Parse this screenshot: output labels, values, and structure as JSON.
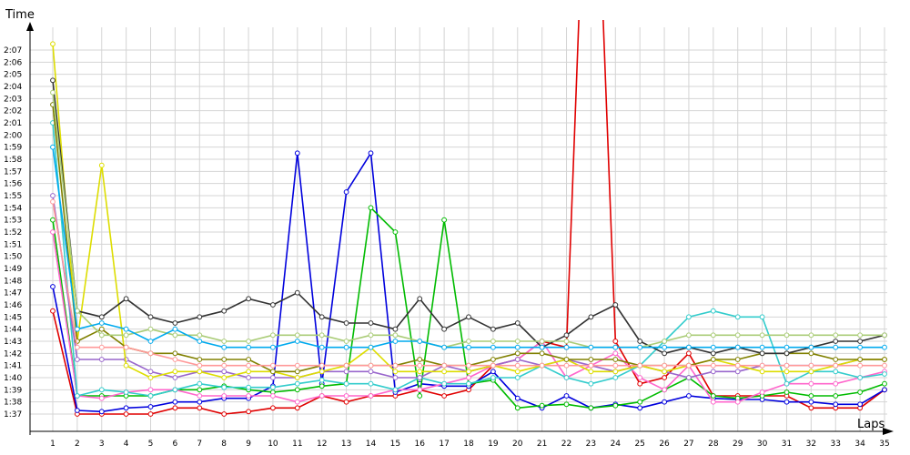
{
  "chart_data": {
    "type": "line",
    "title": "",
    "xlabel": "Laps",
    "ylabel": "Time",
    "x": [
      1,
      2,
      3,
      4,
      5,
      6,
      7,
      8,
      9,
      10,
      11,
      12,
      13,
      14,
      15,
      16,
      17,
      18,
      19,
      20,
      21,
      22,
      23,
      24,
      25,
      26,
      27,
      28,
      29,
      30,
      31,
      32,
      33,
      34,
      35
    ],
    "xlim": [
      1,
      35
    ],
    "y_ticks": [
      "1:37",
      "1:38",
      "1:39",
      "1:40",
      "1:41",
      "1:42",
      "1:43",
      "1:44",
      "1:45",
      "1:46",
      "1:47",
      "1:48",
      "1:49",
      "1:50",
      "1:51",
      "1:52",
      "1:53",
      "1:54",
      "1:55",
      "1:56",
      "1:57",
      "1:58",
      "1:59",
      "2:00",
      "2:01",
      "2:02",
      "2:03",
      "2:04",
      "2:05",
      "2:06",
      "2:07"
    ],
    "ylim_seconds": [
      96,
      128
    ],
    "y_unit": "seconds (lap time, labeled m:ss)",
    "grid": true,
    "legend": "none",
    "series": [
      {
        "color": "#e00000",
        "values": [
          105.5,
          97,
          97,
          97,
          97,
          97.5,
          97.5,
          97,
          97.2,
          97.5,
          97.5,
          98.5,
          98,
          98.5,
          98.5,
          99,
          98.5,
          99,
          101,
          101.5,
          103,
          102.5,
          156,
          103,
          99.5,
          100,
          102,
          98.5,
          98.5,
          98.5,
          98.5,
          97.5,
          97.5,
          97.5,
          99
        ]
      },
      {
        "color": "#0000dd",
        "values": [
          107.5,
          97.3,
          97.2,
          97.5,
          97.6,
          98,
          98,
          98.3,
          98.3,
          99.3,
          118.5,
          99.5,
          115.3,
          118.5,
          98.8,
          99.5,
          99.3,
          99.3,
          100.5,
          98.3,
          97.5,
          98.5,
          97.5,
          97.8,
          97.5,
          98,
          98.5,
          98.3,
          98.2,
          98.2,
          98,
          98,
          97.8,
          97.8,
          99
        ]
      },
      {
        "color": "#00bb00",
        "values": [
          113,
          98.5,
          98.5,
          98.5,
          98.5,
          99,
          99,
          99.3,
          99,
          98.8,
          99,
          99.3,
          99.5,
          114,
          112,
          98.5,
          113,
          99.5,
          99.8,
          97.5,
          97.7,
          97.8,
          97.5,
          97.7,
          98,
          99,
          100,
          98.5,
          98.3,
          98.5,
          98.8,
          98.5,
          98.5,
          98.8,
          99.5
        ]
      },
      {
        "color": "#ff66cc",
        "values": [
          112,
          98.5,
          98.3,
          98.8,
          99,
          99,
          98.5,
          98.5,
          98.5,
          98.5,
          98,
          98.5,
          98.5,
          98.5,
          99,
          99,
          99.5,
          100,
          101,
          101.5,
          103,
          100,
          101,
          102,
          100,
          99,
          101,
          98,
          98,
          98.8,
          99.5,
          99.5,
          99.5,
          100,
          100.5
        ]
      },
      {
        "color": "#33cccc",
        "values": [
          121,
          98.5,
          99,
          98.8,
          98.5,
          99,
          99.5,
          99.2,
          99.2,
          99.2,
          99.5,
          99.8,
          99.5,
          99.5,
          99,
          100,
          99.5,
          99.5,
          100,
          100,
          101,
          100,
          99.5,
          100,
          101,
          103,
          105,
          105.5,
          105,
          105,
          99.5,
          100.5,
          100.5,
          100,
          100.3
        ]
      },
      {
        "color": "#9966cc",
        "values": [
          115,
          101.5,
          101.5,
          101.5,
          100.5,
          100,
          100.5,
          100.5,
          100,
          100,
          100,
          100.5,
          100.5,
          100.5,
          100,
          100,
          101,
          100.5,
          101,
          101.5,
          101,
          101.5,
          101,
          100.5,
          101,
          100.5,
          100,
          100.5,
          100.5,
          101,
          101,
          101,
          101,
          101.5,
          101.5
        ]
      },
      {
        "color": "#dddd00",
        "values": [
          127.5,
          103,
          117.5,
          101,
          100,
          100.5,
          100.5,
          100,
          100.5,
          100.5,
          100,
          100.5,
          101,
          102.5,
          100.5,
          100.5,
          100.5,
          100.5,
          101,
          100.5,
          101,
          101.5,
          100.5,
          100.5,
          101,
          100.5,
          101,
          101.5,
          101,
          100.5,
          100.5,
          100.5,
          101,
          101.5,
          101.5
        ]
      },
      {
        "color": "#808000",
        "values": [
          122.5,
          103,
          104,
          102.5,
          102,
          102,
          101.5,
          101.5,
          101.5,
          100.5,
          100.5,
          101,
          101,
          101,
          101,
          101.5,
          101,
          101,
          101.5,
          102,
          102,
          101.5,
          101.5,
          101.5,
          101,
          101,
          101,
          101.5,
          101.5,
          102,
          102,
          102,
          101.5,
          101.5,
          101.5
        ]
      },
      {
        "color": "#333333",
        "values": [
          124.5,
          105.5,
          105,
          106.5,
          105,
          104.5,
          105,
          105.5,
          106.5,
          106,
          107,
          105,
          104.5,
          104.5,
          104,
          106.5,
          104,
          105,
          104,
          104.5,
          102.5,
          103.5,
          105,
          106,
          103,
          102,
          102.5,
          102,
          102.5,
          102,
          102,
          102.5,
          103,
          103,
          103.5
        ]
      },
      {
        "color": "#aacc77",
        "values": [
          123.5,
          105.5,
          103.5,
          103.5,
          104,
          103.5,
          103.5,
          103,
          103,
          103.5,
          103.5,
          103.5,
          103,
          103.5,
          103.5,
          103,
          102.5,
          103,
          103,
          103,
          103,
          103,
          102.5,
          102.5,
          102.5,
          103,
          103.5,
          103.5,
          103.5,
          103.5,
          103.5,
          103.5,
          103.5,
          103.5,
          103.5
        ]
      },
      {
        "color": "#00aaee",
        "values": [
          119,
          104,
          104.5,
          104,
          103,
          104,
          103,
          102.5,
          102.5,
          102.5,
          103,
          102.5,
          102.5,
          102.5,
          103,
          103,
          102.5,
          102.5,
          102.5,
          102.5,
          102.5,
          102.5,
          102.5,
          102.5,
          102.5,
          102.5,
          102.5,
          102.5,
          102.5,
          102.5,
          102.5,
          102.5,
          102.5,
          102.5,
          102.5
        ]
      },
      {
        "color": "#ff9999",
        "values": [
          114.5,
          102.5,
          102.5,
          102.5,
          102,
          101.5,
          101,
          101,
          101,
          101,
          101,
          101,
          101,
          101,
          101,
          101,
          101,
          101,
          101,
          101,
          101,
          101,
          101,
          101,
          101,
          101,
          101,
          101,
          101,
          101,
          101,
          101,
          101,
          101,
          101
        ]
      }
    ]
  }
}
